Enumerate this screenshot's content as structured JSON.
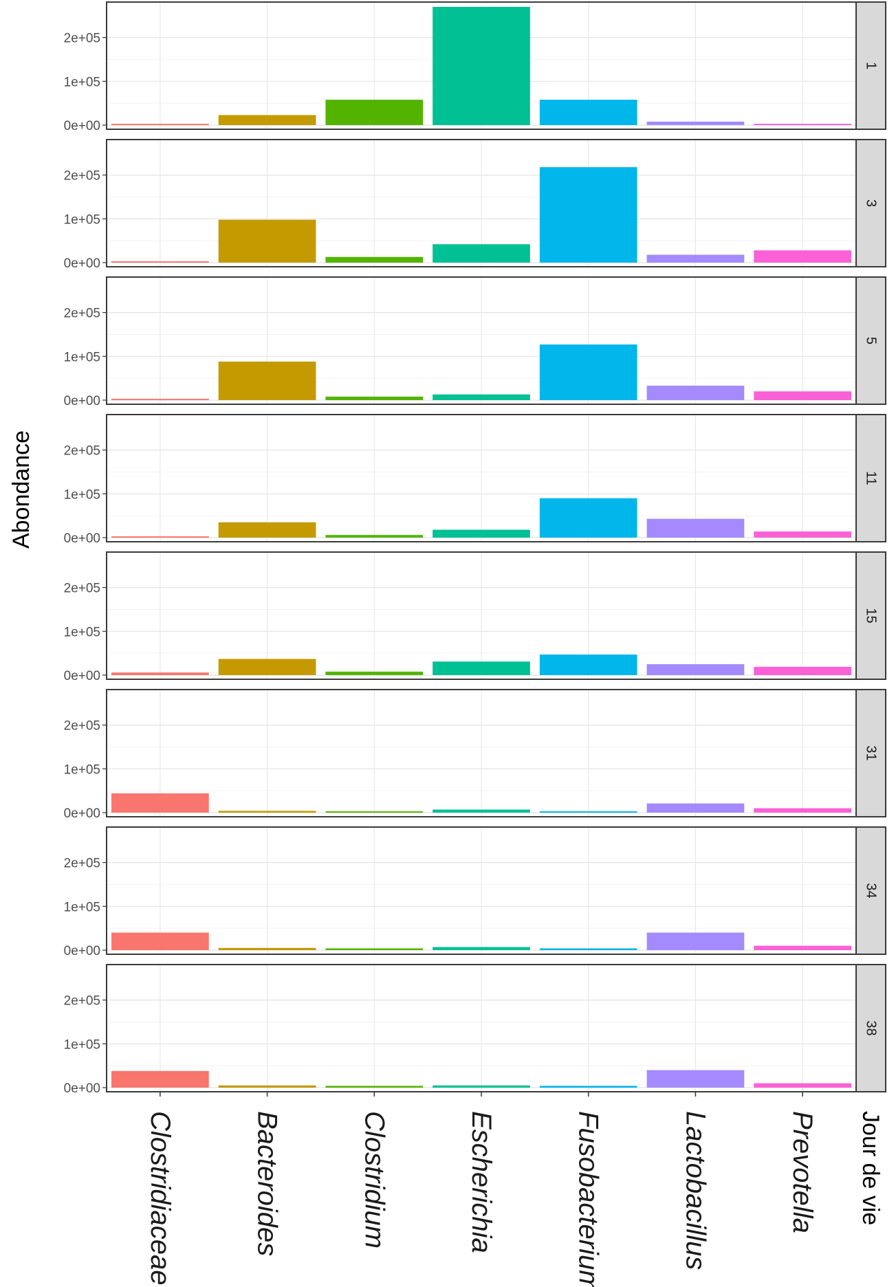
{
  "chart_data": {
    "type": "bar",
    "ylabel": "Abondance",
    "facet_label": "Jour de vie",
    "categories": [
      "Clostridiaceae",
      "Bacteroides",
      "Clostridium",
      "Escherichia",
      "Fusobacterium",
      "Lactobacillus",
      "Prevotella"
    ],
    "colors": [
      "#f8766d",
      "#c49a00",
      "#53b400",
      "#00c094",
      "#00b6eb",
      "#a58aff",
      "#fb61d7"
    ],
    "y_ticks": [
      {
        "value": 0,
        "label": "0e+00"
      },
      {
        "value": 100000,
        "label": "1e+05"
      },
      {
        "value": 200000,
        "label": "2e+05"
      }
    ],
    "ylim": [
      0,
      270000
    ],
    "grid": true,
    "panels": [
      {
        "label": "1",
        "values": [
          3000,
          23000,
          58000,
          270000,
          58000,
          8000,
          3000
        ]
      },
      {
        "label": "3",
        "values": [
          3000,
          98000,
          13000,
          42000,
          218000,
          18000,
          28000
        ]
      },
      {
        "label": "5",
        "values": [
          3000,
          88000,
          8000,
          13000,
          127000,
          33000,
          20000
        ]
      },
      {
        "label": "11",
        "values": [
          3000,
          35000,
          6000,
          18000,
          90000,
          43000,
          14000
        ]
      },
      {
        "label": "15",
        "values": [
          6000,
          37000,
          8000,
          31000,
          47000,
          25000,
          19000
        ]
      },
      {
        "label": "31",
        "values": [
          44000,
          4000,
          3000,
          7000,
          3000,
          21000,
          10000
        ]
      },
      {
        "label": "34",
        "values": [
          40000,
          5000,
          4000,
          7000,
          4000,
          40000,
          10000
        ]
      },
      {
        "label": "38",
        "values": [
          38000,
          5000,
          4000,
          5000,
          4000,
          40000,
          10000
        ]
      }
    ]
  }
}
